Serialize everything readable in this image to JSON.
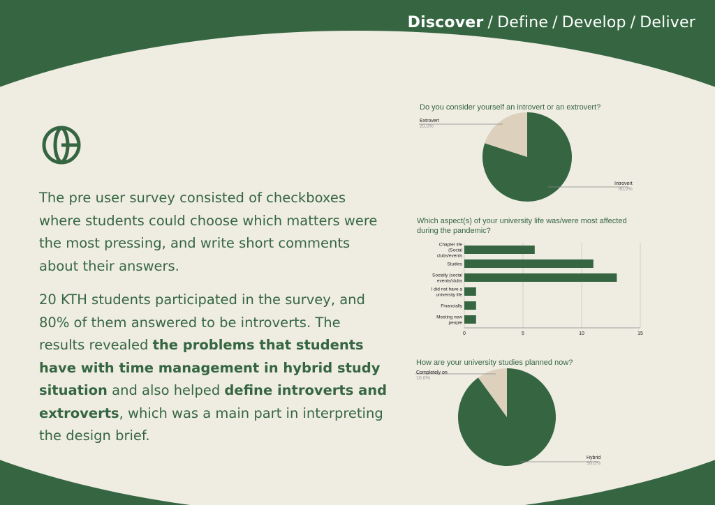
{
  "nav": {
    "items": [
      {
        "label": "Discover",
        "active": true
      },
      {
        "label": "Define",
        "active": false
      },
      {
        "label": "Develop",
        "active": false
      },
      {
        "label": "Deliver",
        "active": false
      }
    ],
    "separator": "/"
  },
  "logo_icon": "circular-leaf-logo-icon",
  "colors": {
    "primary": "#356641",
    "background": "#efece2",
    "secondary": "#ddd1bd"
  },
  "text": {
    "p1": "The pre user survey consisted of checkboxes where students could choose which matters were the most pressing, and write short comments about their answers.",
    "p2_a": "20 KTH students participated in the survey, and 80% of them answered to be introverts. The results revealed ",
    "p2_b": "the problems that students have with time management in hybrid study situation",
    "p2_c": " and also helped ",
    "p2_d": "define introverts and extroverts",
    "p2_e": ", which was a main part in interpreting the design brief."
  },
  "chart_data": [
    {
      "type": "pie",
      "title": "Do you consider yourself an introvert or an extrovert?",
      "slices": [
        {
          "name": "Introvert",
          "value": 80,
          "label": "80,0%",
          "color": "#356641"
        },
        {
          "name": "Extrovert",
          "value": 20,
          "label": "20,0%",
          "color": "#ddd1bd"
        }
      ]
    },
    {
      "type": "bar",
      "orientation": "horizontal",
      "title": "Which aspect(s) of your university life was/were most affected during the pandemic?",
      "categories": [
        "Chapter life (Social clubs/events",
        "Studies",
        "Socially (social events/clubs",
        "I did not have a university life",
        "Financially",
        "Meeting new people"
      ],
      "values": [
        6,
        11,
        13,
        1,
        1,
        1
      ],
      "xlim": [
        0,
        15
      ],
      "xticks": [
        0,
        5,
        10,
        15
      ],
      "grid": true,
      "color": "#356641"
    },
    {
      "type": "pie",
      "title": "How are your university studies planned now?",
      "slices": [
        {
          "name": "Hybrid",
          "value": 90,
          "label": "90,0%",
          "color": "#356641"
        },
        {
          "name": "Completely on",
          "value": 10,
          "label": "10,0%",
          "color": "#ddd1bd"
        }
      ]
    }
  ]
}
